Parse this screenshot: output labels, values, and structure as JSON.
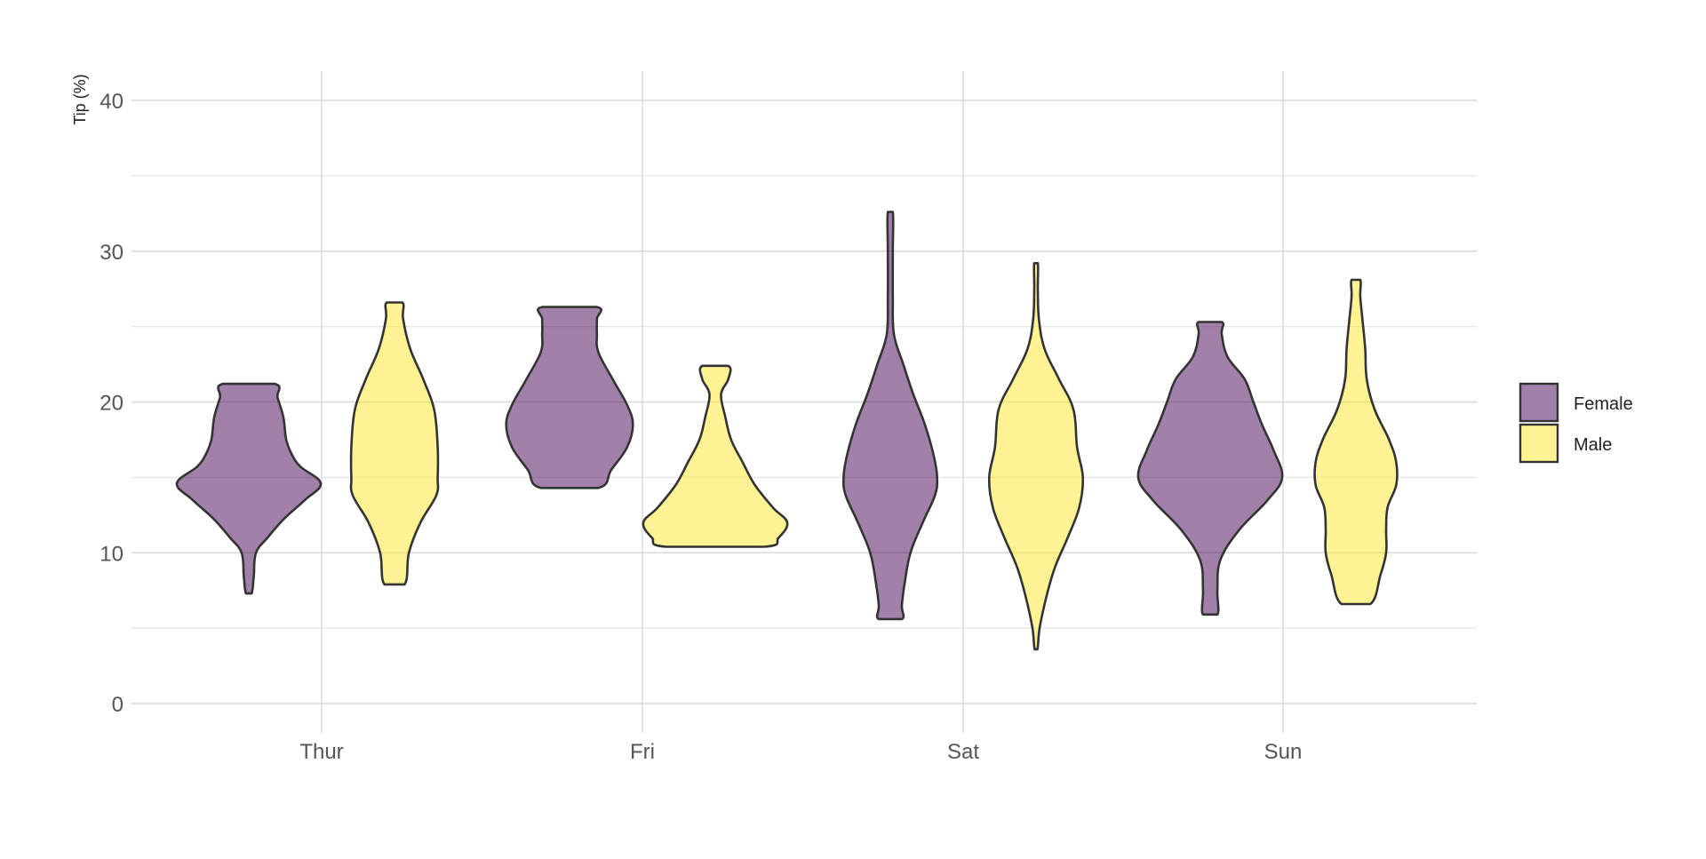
{
  "chart_data": {
    "type": "violin",
    "title": "",
    "xlabel": "",
    "ylabel": "Tip (%)",
    "categories": [
      "Thur",
      "Fri",
      "Sat",
      "Sun"
    ],
    "yticks": [
      0,
      10,
      20,
      30,
      40
    ],
    "ylim": [
      -2,
      42
    ],
    "grid": true,
    "legend_position": "right",
    "series": [
      {
        "name": "Female",
        "color": "#440154",
        "opacity": 0.5,
        "violins": [
          {
            "category": "Thur",
            "min": 7.3,
            "max": 21.2,
            "profile": [
              [
                7.3,
                0.04
              ],
              [
                8.5,
                0.07
              ],
              [
                10,
                0.1
              ],
              [
                11,
                0.26
              ],
              [
                12.3,
                0.5
              ],
              [
                13.5,
                0.78
              ],
              [
                14.6,
                1.0
              ],
              [
                15.7,
                0.72
              ],
              [
                16.5,
                0.6
              ],
              [
                17.5,
                0.52
              ],
              [
                19,
                0.48
              ],
              [
                20.3,
                0.4
              ],
              [
                21.2,
                0.36
              ]
            ]
          },
          {
            "category": "Fri",
            "min": 14.3,
            "max": 26.3,
            "profile": [
              [
                14.3,
                0.4
              ],
              [
                15.5,
                0.58
              ],
              [
                17,
                0.8
              ],
              [
                18.5,
                0.88
              ],
              [
                19.8,
                0.8
              ],
              [
                21.5,
                0.6
              ],
              [
                23.3,
                0.4
              ],
              [
                24.5,
                0.38
              ],
              [
                25.5,
                0.38
              ],
              [
                26.3,
                0.38
              ]
            ]
          },
          {
            "category": "Sat",
            "min": 5.6,
            "max": 32.6,
            "profile": [
              [
                5.6,
                0.16
              ],
              [
                6.5,
                0.16
              ],
              [
                8,
                0.2
              ],
              [
                10,
                0.28
              ],
              [
                12,
                0.45
              ],
              [
                13.8,
                0.62
              ],
              [
                15,
                0.65
              ],
              [
                16.5,
                0.6
              ],
              [
                18.5,
                0.48
              ],
              [
                20.5,
                0.32
              ],
              [
                22.5,
                0.18
              ],
              [
                24.5,
                0.05
              ],
              [
                27,
                0.035
              ],
              [
                30,
                0.035
              ],
              [
                32.6,
                0.035
              ]
            ]
          },
          {
            "category": "Sun",
            "min": 5.9,
            "max": 25.3,
            "profile": [
              [
                5.9,
                0.1
              ],
              [
                7.5,
                0.1
              ],
              [
                9.5,
                0.14
              ],
              [
                11.5,
                0.4
              ],
              [
                13.5,
                0.8
              ],
              [
                15,
                1.0
              ],
              [
                16.8,
                0.88
              ],
              [
                18.5,
                0.72
              ],
              [
                20,
                0.6
              ],
              [
                21.5,
                0.48
              ],
              [
                23,
                0.24
              ],
              [
                24.5,
                0.16
              ],
              [
                25.3,
                0.16
              ]
            ]
          }
        ]
      },
      {
        "name": "Male",
        "color": "#fde725",
        "opacity": 0.5,
        "violins": [
          {
            "category": "Thur",
            "min": 7.9,
            "max": 26.6,
            "profile": [
              [
                7.9,
                0.14
              ],
              [
                10,
                0.2
              ],
              [
                12,
                0.36
              ],
              [
                13.8,
                0.58
              ],
              [
                15,
                0.6
              ],
              [
                17,
                0.6
              ],
              [
                19.5,
                0.55
              ],
              [
                21.5,
                0.4
              ],
              [
                23.5,
                0.22
              ],
              [
                25.5,
                0.12
              ],
              [
                26.6,
                0.11
              ]
            ]
          },
          {
            "category": "Fri",
            "min": 10.4,
            "max": 22.4,
            "profile": [
              [
                10.4,
                0.68
              ],
              [
                11,
                0.88
              ],
              [
                12,
                1.0
              ],
              [
                13,
                0.8
              ],
              [
                14.5,
                0.55
              ],
              [
                16,
                0.38
              ],
              [
                17.5,
                0.22
              ],
              [
                19,
                0.14
              ],
              [
                20.5,
                0.08
              ],
              [
                21.5,
                0.18
              ],
              [
                22.4,
                0.18
              ]
            ]
          },
          {
            "category": "Sat",
            "min": 3.6,
            "max": 29.2,
            "profile": [
              [
                3.6,
                0.02
              ],
              [
                5,
                0.05
              ],
              [
                7,
                0.14
              ],
              [
                9,
                0.26
              ],
              [
                11,
                0.44
              ],
              [
                13,
                0.6
              ],
              [
                15,
                0.65
              ],
              [
                17,
                0.57
              ],
              [
                19.5,
                0.52
              ],
              [
                21.5,
                0.32
              ],
              [
                23.5,
                0.12
              ],
              [
                25.5,
                0.04
              ],
              [
                27.5,
                0.025
              ],
              [
                29.2,
                0.025
              ]
            ]
          },
          {
            "category": "Sun",
            "min": 6.6,
            "max": 28.1,
            "profile": [
              [
                6.6,
                0.2
              ],
              [
                8.5,
                0.34
              ],
              [
                10,
                0.42
              ],
              [
                11.5,
                0.42
              ],
              [
                13,
                0.44
              ],
              [
                14.5,
                0.56
              ],
              [
                16,
                0.56
              ],
              [
                17.5,
                0.46
              ],
              [
                19.5,
                0.26
              ],
              [
                21.5,
                0.15
              ],
              [
                23.5,
                0.13
              ],
              [
                25.5,
                0.09
              ],
              [
                27,
                0.06
              ],
              [
                28.1,
                0.06
              ]
            ]
          }
        ]
      }
    ]
  }
}
